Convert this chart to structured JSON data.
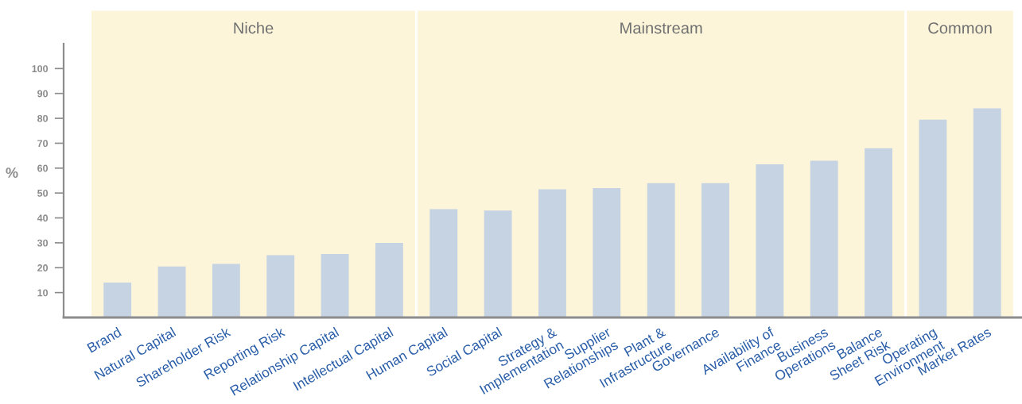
{
  "chart_data": {
    "type": "bar",
    "categories": [
      "Brand",
      "Natural Capital",
      "Shareholder Risk",
      "Reporting Risk",
      "Relationship Capital",
      "Intellectual Capital",
      "Human Capital",
      "Social Capital",
      "Strategy &\nImplementation",
      "Supplier\nRelationships",
      "Plant &\nInfrastructure",
      "Governance",
      "Availability of\nFinance",
      "Business\nOperations",
      "Balance\nSheet Risk",
      "Operating\nEnvironment",
      "Market Rates"
    ],
    "values": [
      14,
      20.5,
      21.5,
      25,
      25.5,
      30,
      43.5,
      43,
      51.5,
      52,
      54,
      54,
      61.5,
      63,
      68,
      79.5,
      84
    ],
    "color": "#c5d3e2",
    "ylabel": "%",
    "ylim": [
      0,
      110
    ],
    "yticks": [
      10,
      20,
      30,
      40,
      50,
      60,
      70,
      80,
      90,
      100
    ],
    "bands": [
      {
        "axis": "x",
        "from": "Brand",
        "to": "Intellectual Capital",
        "label": "Niche",
        "color": "#fcf5da"
      },
      {
        "axis": "x",
        "from": "Human Capital",
        "to": "Balance\nSheet Risk",
        "label": "Mainstream",
        "color": "#fcf5da"
      },
      {
        "axis": "x",
        "from": "Operating\nEnvironment",
        "to": "Market Rates",
        "label": "Common",
        "color": "#fcf5da"
      }
    ],
    "grid": false,
    "legend": false
  }
}
